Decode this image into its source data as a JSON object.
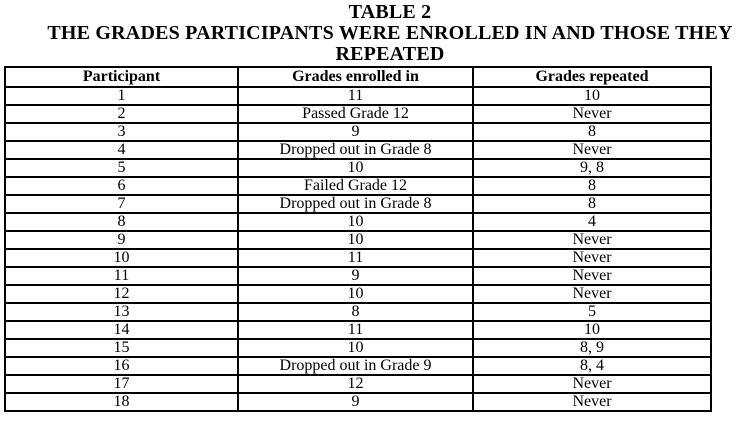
{
  "heading": {
    "table_label": "TABLE 2",
    "title_line1": "THE GRADES PARTICIPANTS WERE ENROLLED IN AND THOSE THEY",
    "title_line2": "REPEATED"
  },
  "table": {
    "columns": [
      "Participant",
      "Grades enrolled in",
      "Grades repeated"
    ],
    "rows": [
      {
        "participant": "1",
        "enrolled": "11",
        "repeated": "10"
      },
      {
        "participant": "2",
        "enrolled": "Passed Grade 12",
        "repeated": "Never"
      },
      {
        "participant": "3",
        "enrolled": "9",
        "repeated": "8"
      },
      {
        "participant": "4",
        "enrolled": "Dropped out in Grade 8",
        "repeated": "Never"
      },
      {
        "participant": "5",
        "enrolled": "10",
        "repeated": "9, 8"
      },
      {
        "participant": "6",
        "enrolled": "Failed Grade 12",
        "repeated": "8"
      },
      {
        "participant": "7",
        "enrolled": "Dropped out in Grade 8",
        "repeated": "8"
      },
      {
        "participant": "8",
        "enrolled": "10",
        "repeated": "4"
      },
      {
        "participant": "9",
        "enrolled": "10",
        "repeated": "Never"
      },
      {
        "participant": "10",
        "enrolled": "11",
        "repeated": "Never"
      },
      {
        "participant": "11",
        "enrolled": "9",
        "repeated": "Never"
      },
      {
        "participant": "12",
        "enrolled": "10",
        "repeated": "Never"
      },
      {
        "participant": "13",
        "enrolled": "8",
        "repeated": "5"
      },
      {
        "participant": "14",
        "enrolled": "11",
        "repeated": "10"
      },
      {
        "participant": "15",
        "enrolled": "10",
        "repeated": "8, 9"
      },
      {
        "participant": "16",
        "enrolled": "Dropped out in Grade 9",
        "repeated": "8, 4"
      },
      {
        "participant": "17",
        "enrolled": "12",
        "repeated": "Never"
      },
      {
        "participant": "18",
        "enrolled": "9",
        "repeated": "Never"
      }
    ]
  },
  "colors": {
    "text": "#000000",
    "border": "#000000",
    "background": "#ffffff"
  }
}
